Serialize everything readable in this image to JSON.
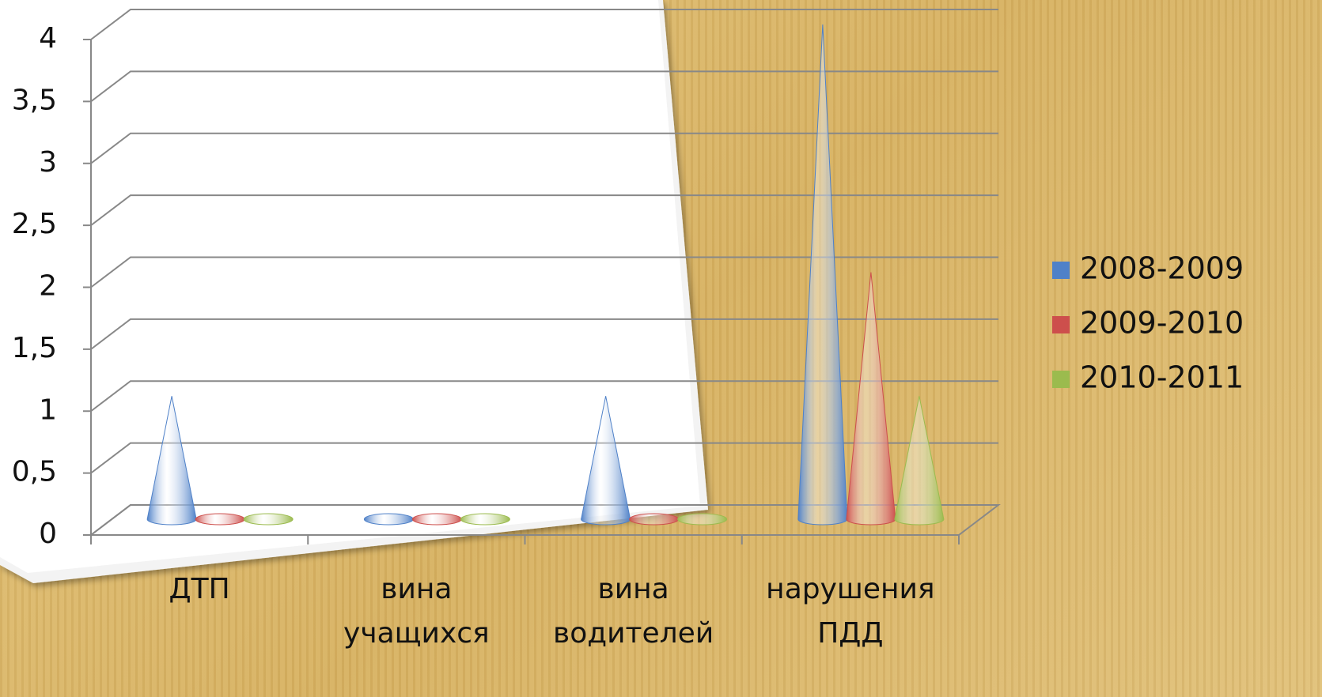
{
  "chart_data": {
    "type": "cone",
    "categories": [
      "ДТП",
      "вина учащихся",
      "вина водителей",
      "нарушения ПДД"
    ],
    "series": [
      {
        "name": "2008-2009",
        "color": "#4f81c8",
        "values": [
          1,
          0,
          1,
          4
        ]
      },
      {
        "name": "2009-2010",
        "color": "#cd4f4c",
        "values": [
          0,
          0,
          0,
          2
        ]
      },
      {
        "name": "2010-2011",
        "color": "#9bbb4e",
        "values": [
          0,
          0,
          0,
          1
        ]
      }
    ],
    "ylim": [
      0,
      4
    ],
    "yticks": [
      0,
      {
        "value": 0.5,
        "label": "0,5"
      },
      1,
      {
        "value": 1.5,
        "label": "1,5"
      },
      2,
      {
        "value": 2.5,
        "label": "2,5"
      },
      3,
      {
        "value": 3.5,
        "label": "3,5"
      },
      4
    ],
    "grid": true,
    "legend": "right"
  }
}
